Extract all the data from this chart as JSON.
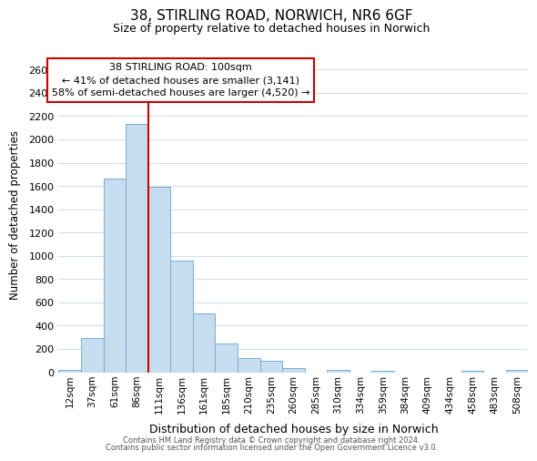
{
  "title": "38, STIRLING ROAD, NORWICH, NR6 6GF",
  "subtitle": "Size of property relative to detached houses in Norwich",
  "xlabel": "Distribution of detached houses by size in Norwich",
  "ylabel": "Number of detached properties",
  "bin_labels": [
    "12sqm",
    "37sqm",
    "61sqm",
    "86sqm",
    "111sqm",
    "136sqm",
    "161sqm",
    "185sqm",
    "210sqm",
    "235sqm",
    "260sqm",
    "285sqm",
    "310sqm",
    "334sqm",
    "359sqm",
    "384sqm",
    "409sqm",
    "434sqm",
    "458sqm",
    "483sqm",
    "508sqm"
  ],
  "bar_heights": [
    20,
    295,
    1665,
    2135,
    1595,
    960,
    505,
    250,
    120,
    95,
    35,
    0,
    20,
    0,
    15,
    0,
    0,
    0,
    15,
    0,
    20
  ],
  "bar_color": "#c6ddf0",
  "bar_edge_color": "#7aaed4",
  "vline_color": "#cc0000",
  "vline_pos": 4,
  "ylim": [
    0,
    2700
  ],
  "yticks": [
    0,
    200,
    400,
    600,
    800,
    1000,
    1200,
    1400,
    1600,
    1800,
    2000,
    2200,
    2400,
    2600
  ],
  "annotation_title": "38 STIRLING ROAD: 100sqm",
  "annotation_line1": "← 41% of detached houses are smaller (3,141)",
  "annotation_line2": "58% of semi-detached houses are larger (4,520) →",
  "annotation_box_color": "#ffffff",
  "annotation_box_edge": "#cc0000",
  "footer1": "Contains HM Land Registry data © Crown copyright and database right 2024.",
  "footer2": "Contains public sector information licensed under the Open Government Licence v3.0.",
  "bg_color": "#ffffff",
  "grid_color": "#c8d8e8"
}
